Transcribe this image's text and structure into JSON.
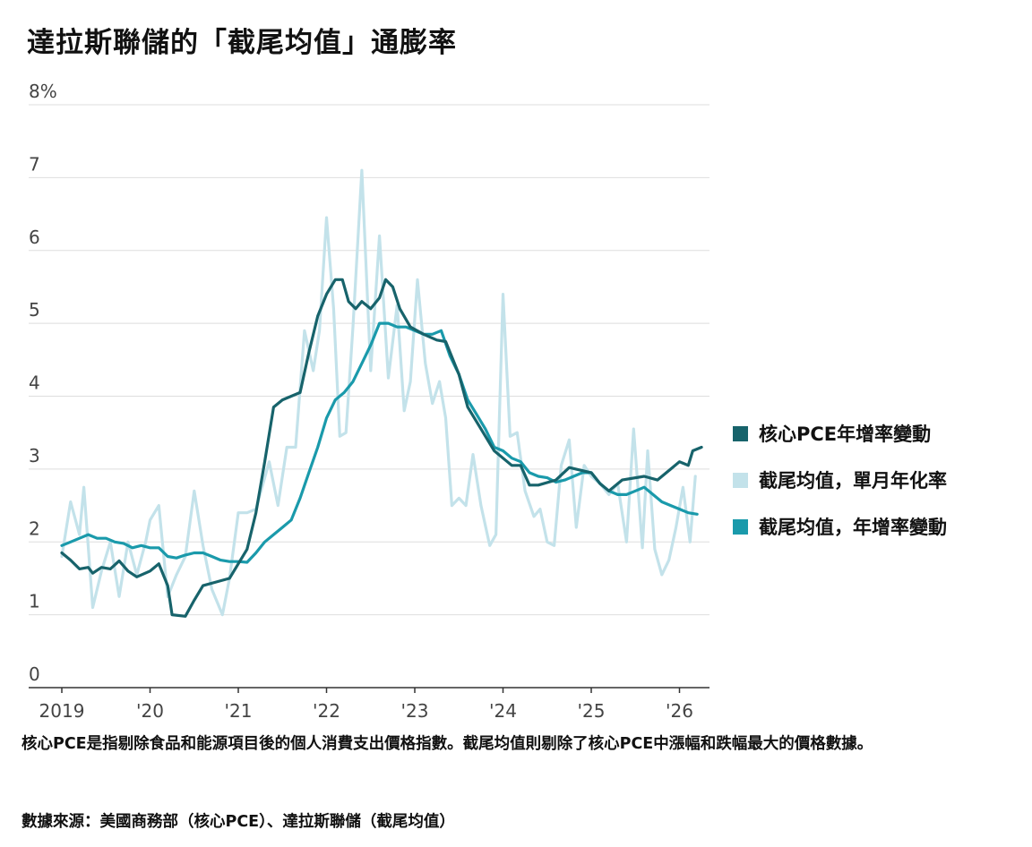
{
  "title": "達拉斯聯儲的「截尾均值」通膨率",
  "note": "核心PCE是指剔除食品和能源項目後的個人消費支出價格指數。截尾均值則剔除了核心PCE中漲幅和跌幅最大的價格數據。",
  "source": "數據來源：美國商務部（核心PCE）、達拉斯聯儲（截尾均值）",
  "chart_data": {
    "type": "line",
    "title": "達拉斯聯儲的「截尾均值」通膨率",
    "xlabel": "",
    "ylabel": "",
    "unit": "%",
    "ylim": [
      0,
      8
    ],
    "xlim": [
      2019.0,
      2026.25
    ],
    "grid": true,
    "legend_position": "right",
    "y_ticks": [
      {
        "value": 0,
        "label": "0"
      },
      {
        "value": 1,
        "label": "1"
      },
      {
        "value": 2,
        "label": "2"
      },
      {
        "value": 3,
        "label": "3"
      },
      {
        "value": 4,
        "label": "4"
      },
      {
        "value": 5,
        "label": "5"
      },
      {
        "value": 6,
        "label": "6"
      },
      {
        "value": 7,
        "label": "7"
      },
      {
        "value": 8,
        "label": "8%"
      }
    ],
    "x_ticks": [
      {
        "value": 2019,
        "label": "2019"
      },
      {
        "value": 2020,
        "label": "'20"
      },
      {
        "value": 2021,
        "label": "'21"
      },
      {
        "value": 2022,
        "label": "'22"
      },
      {
        "value": 2023,
        "label": "'23"
      },
      {
        "value": 2024,
        "label": "'24"
      },
      {
        "value": 2025,
        "label": "'25"
      },
      {
        "value": 2026,
        "label": "'26"
      }
    ],
    "series": [
      {
        "name": "核心PCE年增率變動",
        "color": "#17636b",
        "width": 3.2,
        "points": [
          [
            2019.0,
            1.85
          ],
          [
            2019.1,
            1.75
          ],
          [
            2019.2,
            1.63
          ],
          [
            2019.3,
            1.65
          ],
          [
            2019.35,
            1.57
          ],
          [
            2019.45,
            1.65
          ],
          [
            2019.55,
            1.63
          ],
          [
            2019.65,
            1.74
          ],
          [
            2019.75,
            1.6
          ],
          [
            2019.85,
            1.52
          ],
          [
            2020.0,
            1.6
          ],
          [
            2020.1,
            1.7
          ],
          [
            2020.2,
            1.4
          ],
          [
            2020.25,
            1.0
          ],
          [
            2020.4,
            0.98
          ],
          [
            2020.5,
            1.2
          ],
          [
            2020.6,
            1.4
          ],
          [
            2020.75,
            1.45
          ],
          [
            2020.9,
            1.5
          ],
          [
            2021.0,
            1.7
          ],
          [
            2021.1,
            1.9
          ],
          [
            2021.2,
            2.4
          ],
          [
            2021.3,
            3.1
          ],
          [
            2021.4,
            3.85
          ],
          [
            2021.5,
            3.95
          ],
          [
            2021.7,
            4.05
          ],
          [
            2021.8,
            4.6
          ],
          [
            2021.9,
            5.1
          ],
          [
            2022.0,
            5.4
          ],
          [
            2022.1,
            5.6
          ],
          [
            2022.18,
            5.6
          ],
          [
            2022.25,
            5.3
          ],
          [
            2022.33,
            5.2
          ],
          [
            2022.4,
            5.3
          ],
          [
            2022.5,
            5.2
          ],
          [
            2022.6,
            5.35
          ],
          [
            2022.67,
            5.6
          ],
          [
            2022.75,
            5.5
          ],
          [
            2022.83,
            5.2
          ],
          [
            2022.95,
            4.95
          ],
          [
            2023.1,
            4.85
          ],
          [
            2023.25,
            4.77
          ],
          [
            2023.35,
            4.75
          ],
          [
            2023.5,
            4.3
          ],
          [
            2023.6,
            3.85
          ],
          [
            2023.75,
            3.55
          ],
          [
            2023.9,
            3.25
          ],
          [
            2024.0,
            3.15
          ],
          [
            2024.1,
            3.05
          ],
          [
            2024.2,
            3.05
          ],
          [
            2024.3,
            2.78
          ],
          [
            2024.4,
            2.78
          ],
          [
            2024.6,
            2.85
          ],
          [
            2024.75,
            3.02
          ],
          [
            2025.0,
            2.95
          ],
          [
            2025.1,
            2.8
          ],
          [
            2025.2,
            2.7
          ],
          [
            2025.35,
            2.85
          ],
          [
            2025.6,
            2.9
          ],
          [
            2025.75,
            2.85
          ],
          [
            2025.9,
            3.0
          ],
          [
            2026.0,
            3.1
          ],
          [
            2026.1,
            3.05
          ],
          [
            2026.15,
            3.25
          ],
          [
            2026.25,
            3.3
          ]
        ]
      },
      {
        "name": "截尾均值，單月年化率",
        "color": "#c3e2ea",
        "width": 3.2,
        "points": [
          [
            2019.0,
            1.8
          ],
          [
            2019.1,
            2.55
          ],
          [
            2019.2,
            2.1
          ],
          [
            2019.25,
            2.75
          ],
          [
            2019.35,
            1.1
          ],
          [
            2019.45,
            1.6
          ],
          [
            2019.55,
            2.0
          ],
          [
            2019.65,
            1.25
          ],
          [
            2019.75,
            2.0
          ],
          [
            2019.85,
            1.55
          ],
          [
            2019.95,
            2.0
          ],
          [
            2020.0,
            2.3
          ],
          [
            2020.1,
            2.5
          ],
          [
            2020.2,
            1.25
          ],
          [
            2020.3,
            1.55
          ],
          [
            2020.4,
            1.8
          ],
          [
            2020.5,
            2.7
          ],
          [
            2020.6,
            1.95
          ],
          [
            2020.7,
            1.35
          ],
          [
            2020.82,
            1.0
          ],
          [
            2020.9,
            1.5
          ],
          [
            2021.0,
            2.4
          ],
          [
            2021.1,
            2.4
          ],
          [
            2021.2,
            2.45
          ],
          [
            2021.35,
            3.1
          ],
          [
            2021.45,
            2.5
          ],
          [
            2021.55,
            3.3
          ],
          [
            2021.65,
            3.3
          ],
          [
            2021.75,
            4.9
          ],
          [
            2021.85,
            4.35
          ],
          [
            2021.92,
            4.9
          ],
          [
            2022.0,
            6.45
          ],
          [
            2022.08,
            5.2
          ],
          [
            2022.15,
            3.45
          ],
          [
            2022.22,
            3.5
          ],
          [
            2022.3,
            4.95
          ],
          [
            2022.4,
            7.1
          ],
          [
            2022.5,
            4.35
          ],
          [
            2022.6,
            6.2
          ],
          [
            2022.7,
            4.25
          ],
          [
            2022.8,
            5.25
          ],
          [
            2022.88,
            3.8
          ],
          [
            2022.95,
            4.2
          ],
          [
            2023.03,
            5.6
          ],
          [
            2023.12,
            4.45
          ],
          [
            2023.2,
            3.9
          ],
          [
            2023.28,
            4.2
          ],
          [
            2023.35,
            3.7
          ],
          [
            2023.42,
            2.5
          ],
          [
            2023.5,
            2.6
          ],
          [
            2023.58,
            2.5
          ],
          [
            2023.66,
            3.2
          ],
          [
            2023.75,
            2.5
          ],
          [
            2023.85,
            1.95
          ],
          [
            2023.92,
            2.1
          ],
          [
            2024.0,
            5.4
          ],
          [
            2024.08,
            3.45
          ],
          [
            2024.16,
            3.5
          ],
          [
            2024.25,
            2.7
          ],
          [
            2024.35,
            2.35
          ],
          [
            2024.42,
            2.45
          ],
          [
            2024.5,
            2.0
          ],
          [
            2024.58,
            1.95
          ],
          [
            2024.66,
            3.05
          ],
          [
            2024.75,
            3.4
          ],
          [
            2024.83,
            2.2
          ],
          [
            2024.92,
            3.05
          ],
          [
            2025.0,
            2.9
          ],
          [
            2025.1,
            2.8
          ],
          [
            2025.2,
            2.65
          ],
          [
            2025.3,
            2.8
          ],
          [
            2025.4,
            2.0
          ],
          [
            2025.48,
            3.55
          ],
          [
            2025.58,
            1.92
          ],
          [
            2025.64,
            3.25
          ],
          [
            2025.72,
            1.9
          ],
          [
            2025.8,
            1.55
          ],
          [
            2025.88,
            1.75
          ],
          [
            2025.96,
            2.2
          ],
          [
            2026.04,
            2.75
          ],
          [
            2026.12,
            2.0
          ],
          [
            2026.18,
            2.9
          ]
        ]
      },
      {
        "name": "截尾均值，年增率變動",
        "color": "#1a9aab",
        "width": 3.2,
        "points": [
          [
            2019.0,
            1.95
          ],
          [
            2019.1,
            2.0
          ],
          [
            2019.2,
            2.05
          ],
          [
            2019.3,
            2.1
          ],
          [
            2019.4,
            2.05
          ],
          [
            2019.5,
            2.05
          ],
          [
            2019.6,
            2.0
          ],
          [
            2019.7,
            1.98
          ],
          [
            2019.8,
            1.92
          ],
          [
            2019.9,
            1.95
          ],
          [
            2020.0,
            1.92
          ],
          [
            2020.1,
            1.92
          ],
          [
            2020.2,
            1.8
          ],
          [
            2020.3,
            1.78
          ],
          [
            2020.4,
            1.82
          ],
          [
            2020.5,
            1.85
          ],
          [
            2020.6,
            1.85
          ],
          [
            2020.7,
            1.8
          ],
          [
            2020.8,
            1.75
          ],
          [
            2020.9,
            1.73
          ],
          [
            2021.0,
            1.73
          ],
          [
            2021.1,
            1.72
          ],
          [
            2021.2,
            1.85
          ],
          [
            2021.3,
            2.0
          ],
          [
            2021.4,
            2.1
          ],
          [
            2021.5,
            2.2
          ],
          [
            2021.6,
            2.3
          ],
          [
            2021.7,
            2.6
          ],
          [
            2021.8,
            2.95
          ],
          [
            2021.9,
            3.3
          ],
          [
            2022.0,
            3.7
          ],
          [
            2022.1,
            3.95
          ],
          [
            2022.2,
            4.05
          ],
          [
            2022.3,
            4.2
          ],
          [
            2022.4,
            4.45
          ],
          [
            2022.5,
            4.7
          ],
          [
            2022.6,
            5.0
          ],
          [
            2022.7,
            5.0
          ],
          [
            2022.8,
            4.95
          ],
          [
            2022.9,
            4.95
          ],
          [
            2023.0,
            4.9
          ],
          [
            2023.1,
            4.85
          ],
          [
            2023.2,
            4.85
          ],
          [
            2023.3,
            4.9
          ],
          [
            2023.4,
            4.55
          ],
          [
            2023.5,
            4.3
          ],
          [
            2023.6,
            3.95
          ],
          [
            2023.7,
            3.75
          ],
          [
            2023.8,
            3.55
          ],
          [
            2023.9,
            3.3
          ],
          [
            2024.0,
            3.25
          ],
          [
            2024.1,
            3.15
          ],
          [
            2024.2,
            3.1
          ],
          [
            2024.3,
            2.95
          ],
          [
            2024.4,
            2.9
          ],
          [
            2024.5,
            2.88
          ],
          [
            2024.6,
            2.82
          ],
          [
            2024.7,
            2.85
          ],
          [
            2024.8,
            2.9
          ],
          [
            2024.9,
            2.95
          ],
          [
            2025.0,
            2.95
          ],
          [
            2025.1,
            2.8
          ],
          [
            2025.2,
            2.7
          ],
          [
            2025.3,
            2.65
          ],
          [
            2025.4,
            2.65
          ],
          [
            2025.5,
            2.7
          ],
          [
            2025.6,
            2.75
          ],
          [
            2025.7,
            2.65
          ],
          [
            2025.8,
            2.55
          ],
          [
            2025.9,
            2.5
          ],
          [
            2026.0,
            2.45
          ],
          [
            2026.1,
            2.4
          ],
          [
            2026.2,
            2.38
          ]
        ]
      }
    ]
  }
}
